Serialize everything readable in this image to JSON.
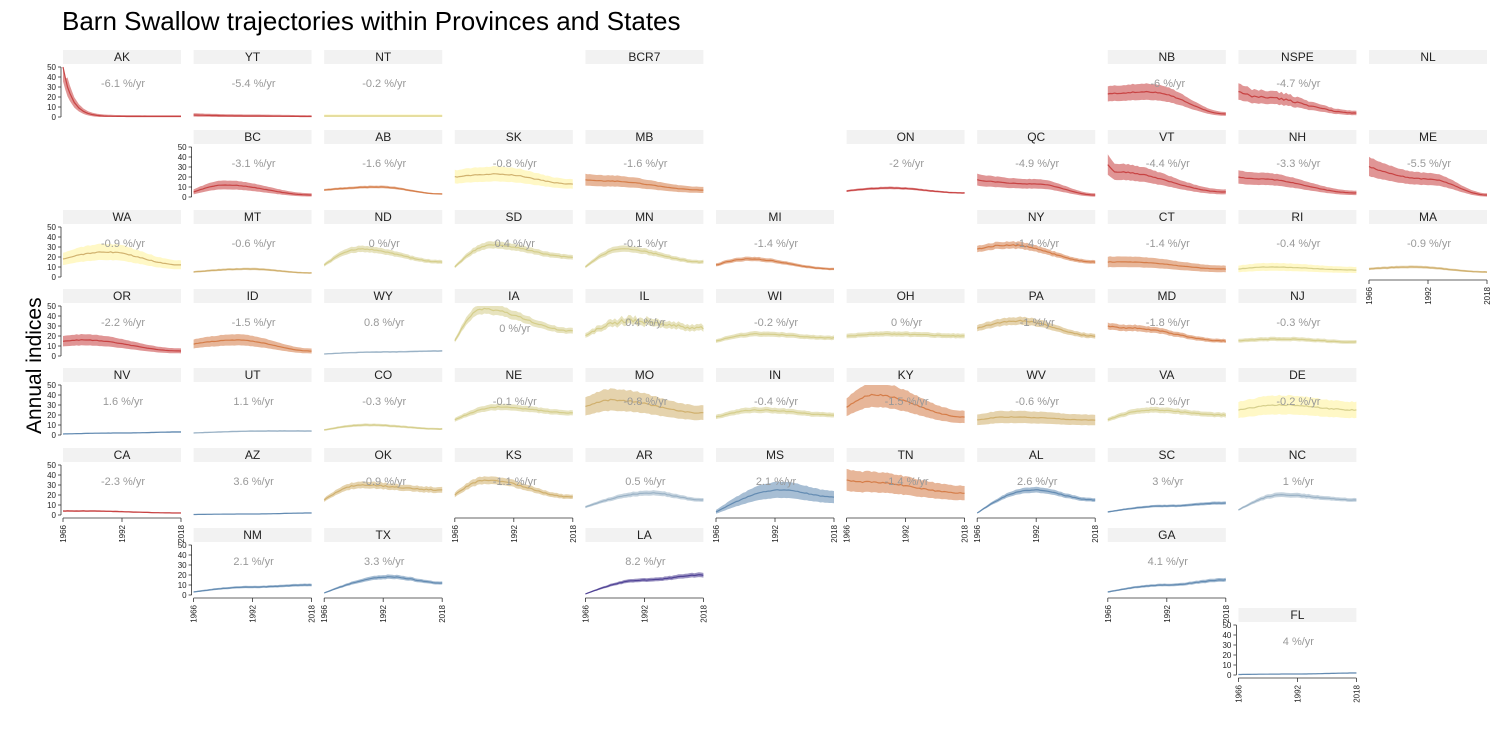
{
  "chart_data": {
    "type": "line",
    "title": "Barn Swallow trajectories within Provinces and States",
    "ylabel": "Annual indices",
    "xlabel": "",
    "x_range": [
      1966,
      2018
    ],
    "x_ticks": [
      "1966",
      "1992",
      "2018"
    ],
    "ylim": [
      0,
      50
    ],
    "y_ticks": [
      "0",
      "10",
      "20",
      "30",
      "40",
      "50"
    ],
    "trend_unit": "%/yr",
    "color_scale": {
      "strong_decline": "#c63e3e",
      "decline": "#d47a45",
      "slight_decline": "#cfae6a",
      "stable": "#d4cc88",
      "slight_increase": "#98b0c4",
      "increase": "#5f88b0",
      "strong_increase": "#4b3d92",
      "band_low_precision": "#fff7c0"
    },
    "panels": [
      {
        "region": "AK",
        "row": 0,
        "col": 0,
        "trend": "-6.1 %/yr",
        "trend_pct": -6.1,
        "y_axis": true,
        "x_axis": false,
        "start": 50,
        "mid": 5,
        "end": 0.5,
        "peak_year": 1966,
        "wide_band": true
      },
      {
        "region": "YT",
        "row": 0,
        "col": 1,
        "trend": "-5.4 %/yr",
        "trend_pct": -5.4,
        "y_axis": false,
        "x_axis": false,
        "start": 2,
        "mid": 1,
        "end": 0.5,
        "peak_year": 1966,
        "wide_band": true
      },
      {
        "region": "NT",
        "row": 0,
        "col": 2,
        "trend": "-0.2 %/yr",
        "trend_pct": -0.2,
        "y_axis": false,
        "x_axis": false,
        "start": 1,
        "mid": 1,
        "end": 1,
        "peak_year": 1966,
        "wide_band": true,
        "pale_band": true
      },
      {
        "region": "BCR7",
        "row": 0,
        "col": 4,
        "trend": "",
        "trend_pct": null,
        "y_axis": false,
        "x_axis": false,
        "empty": true
      },
      {
        "region": "NB",
        "row": 0,
        "col": 8,
        "trend": "-6 %/yr",
        "trend_pct": -6,
        "y_axis": false,
        "x_axis": false,
        "start": 23,
        "mid": 25,
        "end": 3,
        "peak_year": 1985,
        "wide_band": true
      },
      {
        "region": "NSPE",
        "row": 0,
        "col": 9,
        "trend": "-4.7 %/yr",
        "trend_pct": -4.7,
        "y_axis": false,
        "x_axis": false,
        "start": 25,
        "mid": 20,
        "end": 4,
        "peak_year": 1975,
        "wide_band": true,
        "noisy": true
      },
      {
        "region": "NL",
        "row": 0,
        "col": 10,
        "trend": "",
        "trend_pct": null,
        "y_axis": false,
        "x_axis": false,
        "empty": true
      },
      {
        "region": "BC",
        "row": 1,
        "col": 1,
        "trend": "-3.1 %/yr",
        "trend_pct": -3.1,
        "y_axis": true,
        "x_axis": false,
        "start": 5,
        "mid": 12,
        "end": 2,
        "peak_year": 1980,
        "wide_band": true
      },
      {
        "region": "AB",
        "row": 1,
        "col": 2,
        "trend": "-1.6 %/yr",
        "trend_pct": -1.6,
        "y_axis": false,
        "x_axis": false,
        "start": 7,
        "mid": 10,
        "end": 3,
        "peak_year": 1990,
        "wide_band": false
      },
      {
        "region": "SK",
        "row": 1,
        "col": 3,
        "trend": "-0.8 %/yr",
        "trend_pct": -0.8,
        "y_axis": false,
        "x_axis": false,
        "start": 20,
        "mid": 23,
        "end": 13,
        "peak_year": 1985,
        "wide_band": true,
        "pale_band": true
      },
      {
        "region": "MB",
        "row": 1,
        "col": 4,
        "trend": "-1.6 %/yr",
        "trend_pct": -1.6,
        "y_axis": false,
        "x_axis": false,
        "start": 17,
        "mid": 16,
        "end": 7,
        "peak_year": 1975,
        "wide_band": true
      },
      {
        "region": "ON",
        "row": 1,
        "col": 6,
        "trend": "-2 %/yr",
        "trend_pct": -2,
        "y_axis": false,
        "x_axis": false,
        "start": 6,
        "mid": 9,
        "end": 4,
        "peak_year": 1985,
        "wide_band": false
      },
      {
        "region": "QC",
        "row": 1,
        "col": 7,
        "trend": "-4.9 %/yr",
        "trend_pct": -4.9,
        "y_axis": false,
        "x_axis": false,
        "start": 17,
        "mid": 13,
        "end": 2,
        "peak_year": 1966,
        "wide_band": true
      },
      {
        "region": "VT",
        "row": 1,
        "col": 8,
        "trend": "-4.4 %/yr",
        "trend_pct": -4.4,
        "y_axis": false,
        "x_axis": false,
        "start": 32,
        "mid": 25,
        "end": 5,
        "peak_year": 1970,
        "wide_band": true
      },
      {
        "region": "NH",
        "row": 1,
        "col": 9,
        "trend": "-3.3 %/yr",
        "trend_pct": -3.3,
        "y_axis": false,
        "x_axis": false,
        "start": 20,
        "mid": 18,
        "end": 4,
        "peak_year": 1975,
        "wide_band": true
      },
      {
        "region": "ME",
        "row": 1,
        "col": 10,
        "trend": "-5.5 %/yr",
        "trend_pct": -5.5,
        "y_axis": false,
        "x_axis": false,
        "start": 30,
        "mid": 18,
        "end": 2,
        "peak_year": 1966,
        "wide_band": true
      },
      {
        "region": "WA",
        "row": 2,
        "col": 0,
        "trend": "-0.9 %/yr",
        "trend_pct": -0.9,
        "y_axis": true,
        "x_axis": false,
        "start": 18,
        "mid": 25,
        "end": 12,
        "peak_year": 1985,
        "wide_band": true,
        "pale_band": true
      },
      {
        "region": "MT",
        "row": 2,
        "col": 1,
        "trend": "-0.6 %/yr",
        "trend_pct": -0.6,
        "y_axis": false,
        "x_axis": false,
        "start": 5,
        "mid": 8,
        "end": 4,
        "peak_year": 1990,
        "wide_band": false
      },
      {
        "region": "ND",
        "row": 2,
        "col": 2,
        "trend": "0 %/yr",
        "trend_pct": 0,
        "y_axis": false,
        "x_axis": false,
        "start": 12,
        "mid": 28,
        "end": 15,
        "peak_year": 1982,
        "wide_band": false
      },
      {
        "region": "SD",
        "row": 2,
        "col": 3,
        "trend": "0.4 %/yr",
        "trend_pct": 0.4,
        "y_axis": false,
        "x_axis": false,
        "start": 10,
        "mid": 32,
        "end": 20,
        "peak_year": 1982,
        "wide_band": false
      },
      {
        "region": "MN",
        "row": 2,
        "col": 4,
        "trend": "-0.1 %/yr",
        "trend_pct": -0.1,
        "y_axis": false,
        "x_axis": false,
        "start": 10,
        "mid": 28,
        "end": 15,
        "peak_year": 1982,
        "wide_band": false
      },
      {
        "region": "MI",
        "row": 2,
        "col": 5,
        "trend": "-1.4 %/yr",
        "trend_pct": -1.4,
        "y_axis": false,
        "x_axis": false,
        "start": 12,
        "mid": 18,
        "end": 8,
        "peak_year": 1980,
        "wide_band": false
      },
      {
        "region": "NY",
        "row": 2,
        "col": 7,
        "trend": "-1.4 %/yr",
        "trend_pct": -1.4,
        "y_axis": false,
        "x_axis": false,
        "start": 28,
        "mid": 32,
        "end": 15,
        "peak_year": 1980,
        "wide_band": false
      },
      {
        "region": "CT",
        "row": 2,
        "col": 8,
        "trend": "-1.4 %/yr",
        "trend_pct": -1.4,
        "y_axis": false,
        "x_axis": false,
        "start": 15,
        "mid": 15,
        "end": 8,
        "peak_year": 1975,
        "wide_band": true
      },
      {
        "region": "RI",
        "row": 2,
        "col": 9,
        "trend": "-0.4 %/yr",
        "trend_pct": -0.4,
        "y_axis": false,
        "x_axis": false,
        "start": 8,
        "mid": 10,
        "end": 7,
        "peak_year": 1980,
        "wide_band": true,
        "pale_band": true
      },
      {
        "region": "MA",
        "row": 2,
        "col": 10,
        "trend": "-0.9 %/yr",
        "trend_pct": -0.9,
        "y_axis": false,
        "x_axis": true,
        "start": 8,
        "mid": 10,
        "end": 5,
        "peak_year": 1985,
        "wide_band": false
      },
      {
        "region": "OR",
        "row": 3,
        "col": 0,
        "trend": "-2.2 %/yr",
        "trend_pct": -2.2,
        "y_axis": true,
        "x_axis": false,
        "start": 15,
        "mid": 16,
        "end": 5,
        "peak_year": 1975,
        "wide_band": true
      },
      {
        "region": "ID",
        "row": 3,
        "col": 1,
        "trend": "-1.5 %/yr",
        "trend_pct": -1.5,
        "y_axis": false,
        "x_axis": false,
        "start": 12,
        "mid": 16,
        "end": 5,
        "peak_year": 1985,
        "wide_band": true
      },
      {
        "region": "WY",
        "row": 3,
        "col": 2,
        "trend": "0.8 %/yr",
        "trend_pct": 0.8,
        "y_axis": false,
        "x_axis": false,
        "start": 2,
        "mid": 4,
        "end": 5,
        "peak_year": 2018,
        "wide_band": false
      },
      {
        "region": "IA",
        "row": 3,
        "col": 3,
        "trend": "0 %/yr",
        "trend_pct": 0,
        "y_axis": false,
        "x_axis": false,
        "start": 15,
        "mid": 47,
        "end": 25,
        "peak_year": 1978,
        "wide_band": false,
        "trend_low": true
      },
      {
        "region": "IL",
        "row": 3,
        "col": 4,
        "trend": "0.4 %/yr",
        "trend_pct": 0.4,
        "y_axis": false,
        "x_axis": false,
        "start": 20,
        "mid": 35,
        "end": 28,
        "peak_year": 1985,
        "wide_band": false,
        "noisy": true
      },
      {
        "region": "WI",
        "row": 3,
        "col": 5,
        "trend": "-0.2 %/yr",
        "trend_pct": -0.2,
        "y_axis": false,
        "x_axis": false,
        "start": 15,
        "mid": 22,
        "end": 18,
        "peak_year": 1985,
        "wide_band": false
      },
      {
        "region": "OH",
        "row": 3,
        "col": 6,
        "trend": "0 %/yr",
        "trend_pct": 0,
        "y_axis": false,
        "x_axis": false,
        "start": 20,
        "mid": 22,
        "end": 20,
        "peak_year": 1985,
        "wide_band": false
      },
      {
        "region": "PA",
        "row": 3,
        "col": 7,
        "trend": "-1 %/yr",
        "trend_pct": -1,
        "y_axis": false,
        "x_axis": false,
        "start": 28,
        "mid": 35,
        "end": 20,
        "peak_year": 1985,
        "wide_band": false
      },
      {
        "region": "MD",
        "row": 3,
        "col": 8,
        "trend": "-1.8 %/yr",
        "trend_pct": -1.8,
        "y_axis": false,
        "x_axis": false,
        "start": 30,
        "mid": 28,
        "end": 15,
        "peak_year": 1975,
        "wide_band": false
      },
      {
        "region": "NJ",
        "row": 3,
        "col": 9,
        "trend": "-0.3 %/yr",
        "trend_pct": -0.3,
        "y_axis": false,
        "x_axis": false,
        "start": 15,
        "mid": 17,
        "end": 14,
        "peak_year": 1985,
        "wide_band": false
      },
      {
        "region": "NV",
        "row": 4,
        "col": 0,
        "trend": "1.6 %/yr",
        "trend_pct": 1.6,
        "y_axis": true,
        "x_axis": false,
        "start": 1,
        "mid": 2,
        "end": 3,
        "peak_year": 2018,
        "wide_band": false
      },
      {
        "region": "UT",
        "row": 4,
        "col": 1,
        "trend": "1.1 %/yr",
        "trend_pct": 1.1,
        "y_axis": false,
        "x_axis": false,
        "start": 2,
        "mid": 4,
        "end": 4,
        "peak_year": 2000,
        "wide_band": false
      },
      {
        "region": "CO",
        "row": 4,
        "col": 2,
        "trend": "-0.3 %/yr",
        "trend_pct": -0.3,
        "y_axis": false,
        "x_axis": false,
        "start": 5,
        "mid": 10,
        "end": 6,
        "peak_year": 1985,
        "wide_band": false
      },
      {
        "region": "NE",
        "row": 4,
        "col": 3,
        "trend": "-0.1 %/yr",
        "trend_pct": -0.1,
        "y_axis": false,
        "x_axis": false,
        "start": 15,
        "mid": 28,
        "end": 22,
        "peak_year": 1985,
        "wide_band": false
      },
      {
        "region": "MO",
        "row": 4,
        "col": 4,
        "trend": "-0.8 %/yr",
        "trend_pct": -0.8,
        "y_axis": false,
        "x_axis": false,
        "start": 28,
        "mid": 35,
        "end": 22,
        "peak_year": 1978,
        "wide_band": true
      },
      {
        "region": "IN",
        "row": 4,
        "col": 5,
        "trend": "-0.4 %/yr",
        "trend_pct": -0.4,
        "y_axis": false,
        "x_axis": false,
        "start": 18,
        "mid": 25,
        "end": 20,
        "peak_year": 1985,
        "wide_band": false
      },
      {
        "region": "KY",
        "row": 4,
        "col": 6,
        "trend": "-1.5 %/yr",
        "trend_pct": -1.5,
        "y_axis": false,
        "x_axis": false,
        "start": 28,
        "mid": 40,
        "end": 18,
        "peak_year": 1978,
        "wide_band": true
      },
      {
        "region": "WV",
        "row": 4,
        "col": 7,
        "trend": "-0.6 %/yr",
        "trend_pct": -0.6,
        "y_axis": false,
        "x_axis": false,
        "start": 15,
        "mid": 18,
        "end": 15,
        "peak_year": 1980,
        "wide_band": true
      },
      {
        "region": "VA",
        "row": 4,
        "col": 8,
        "trend": "-0.2 %/yr",
        "trend_pct": -0.2,
        "y_axis": false,
        "x_axis": false,
        "start": 15,
        "mid": 25,
        "end": 20,
        "peak_year": 1985,
        "wide_band": false
      },
      {
        "region": "DE",
        "row": 4,
        "col": 9,
        "trend": "-0.2 %/yr",
        "trend_pct": -0.2,
        "y_axis": false,
        "x_axis": false,
        "start": 25,
        "mid": 30,
        "end": 25,
        "peak_year": 1985,
        "wide_band": true,
        "pale_band": true
      },
      {
        "region": "CA",
        "row": 5,
        "col": 0,
        "trend": "-2.3 %/yr",
        "trend_pct": -2.3,
        "y_axis": true,
        "x_axis": true,
        "start": 4,
        "mid": 4,
        "end": 2,
        "peak_year": 1975,
        "wide_band": false
      },
      {
        "region": "AZ",
        "row": 5,
        "col": 1,
        "trend": "3.6 %/yr",
        "trend_pct": 3.6,
        "y_axis": false,
        "x_axis": false,
        "start": 0.5,
        "mid": 1,
        "end": 2,
        "peak_year": 2018,
        "wide_band": false
      },
      {
        "region": "OK",
        "row": 5,
        "col": 2,
        "trend": "-0.9 %/yr",
        "trend_pct": -0.9,
        "y_axis": false,
        "x_axis": false,
        "start": 15,
        "mid": 30,
        "end": 25,
        "peak_year": 1982,
        "wide_band": false
      },
      {
        "region": "KS",
        "row": 5,
        "col": 3,
        "trend": "-1.1 %/yr",
        "trend_pct": -1.1,
        "y_axis": false,
        "x_axis": true,
        "start": 20,
        "mid": 35,
        "end": 18,
        "peak_year": 1980,
        "wide_band": false
      },
      {
        "region": "AR",
        "row": 5,
        "col": 4,
        "trend": "0.5 %/yr",
        "trend_pct": 0.5,
        "y_axis": false,
        "x_axis": false,
        "start": 8,
        "mid": 22,
        "end": 15,
        "peak_year": 1995,
        "wide_band": false
      },
      {
        "region": "MS",
        "row": 5,
        "col": 5,
        "trend": "2.1 %/yr",
        "trend_pct": 2.1,
        "y_axis": false,
        "x_axis": true,
        "start": 3,
        "mid": 25,
        "end": 18,
        "peak_year": 1995,
        "wide_band": true
      },
      {
        "region": "TN",
        "row": 5,
        "col": 6,
        "trend": "-1.4 %/yr",
        "trend_pct": -1.4,
        "y_axis": false,
        "x_axis": true,
        "start": 35,
        "mid": 33,
        "end": 22,
        "peak_year": 1975,
        "wide_band": true
      },
      {
        "region": "AL",
        "row": 5,
        "col": 7,
        "trend": "2.6 %/yr",
        "trend_pct": 2.6,
        "y_axis": false,
        "x_axis": true,
        "start": 2,
        "mid": 25,
        "end": 15,
        "peak_year": 1990,
        "wide_band": false
      },
      {
        "region": "SC",
        "row": 5,
        "col": 8,
        "trend": "3 %/yr",
        "trend_pct": 3,
        "y_axis": false,
        "x_axis": false,
        "start": 3,
        "mid": 9,
        "end": 12,
        "peak_year": 2018,
        "wide_band": false
      },
      {
        "region": "NC",
        "row": 5,
        "col": 9,
        "trend": "1 %/yr",
        "trend_pct": 1,
        "y_axis": false,
        "x_axis": false,
        "start": 5,
        "mid": 20,
        "end": 15,
        "peak_year": 1985,
        "wide_band": false
      },
      {
        "region": "NM",
        "row": 6,
        "col": 1,
        "trend": "2.1 %/yr",
        "trend_pct": 2.1,
        "y_axis": true,
        "x_axis": true,
        "start": 3,
        "mid": 8,
        "end": 10,
        "peak_year": 2018,
        "wide_band": false
      },
      {
        "region": "TX",
        "row": 6,
        "col": 2,
        "trend": "3.3 %/yr",
        "trend_pct": 3.3,
        "y_axis": false,
        "x_axis": true,
        "start": 2,
        "mid": 18,
        "end": 12,
        "peak_year": 1995,
        "wide_band": false
      },
      {
        "region": "LA",
        "row": 6,
        "col": 4,
        "trend": "8.2 %/yr",
        "trend_pct": 8.2,
        "y_axis": false,
        "x_axis": true,
        "start": 1,
        "mid": 15,
        "end": 20,
        "peak_year": 2018,
        "wide_band": false
      },
      {
        "region": "GA",
        "row": 6,
        "col": 8,
        "trend": "4.1 %/yr",
        "trend_pct": 4.1,
        "y_axis": false,
        "x_axis": true,
        "start": 3,
        "mid": 10,
        "end": 15,
        "peak_year": 2018,
        "wide_band": false
      },
      {
        "region": "FL",
        "row": 7,
        "col": 9,
        "trend": "4 %/yr",
        "trend_pct": 4,
        "y_axis": true,
        "x_axis": true,
        "start": 0.5,
        "mid": 1,
        "end": 2,
        "peak_year": 2018,
        "wide_band": false
      }
    ]
  }
}
